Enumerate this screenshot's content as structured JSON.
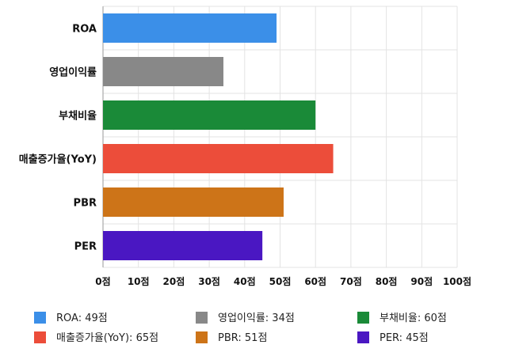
{
  "chart_data": {
    "type": "bar",
    "orientation": "horizontal",
    "categories": [
      "ROA",
      "영업이익률",
      "부채비율",
      "매출증가율(YoY)",
      "PBR",
      "PER"
    ],
    "values": [
      49,
      34,
      60,
      65,
      51,
      45
    ],
    "colors": [
      "#3b8fe8",
      "#888888",
      "#1a8a38",
      "#ec4d3a",
      "#cd7418",
      "#4a17c2"
    ],
    "xlim": [
      0,
      100
    ],
    "xticks": [
      0,
      10,
      20,
      30,
      40,
      50,
      60,
      70,
      80,
      90,
      100
    ],
    "tick_suffix": "점",
    "grid": true,
    "legend": {
      "placement": "bottom",
      "items": [
        {
          "label": "ROA: 49점",
          "color": "#3b8fe8"
        },
        {
          "label": "영업이익률: 34점",
          "color": "#888888"
        },
        {
          "label": "부채비율: 60점",
          "color": "#1a8a38"
        },
        {
          "label": "매출증가율(YoY): 65점",
          "color": "#ec4d3a"
        },
        {
          "label": "PBR: 51점",
          "color": "#cd7418"
        },
        {
          "label": "PER: 45점",
          "color": "#4a17c2"
        }
      ]
    }
  }
}
